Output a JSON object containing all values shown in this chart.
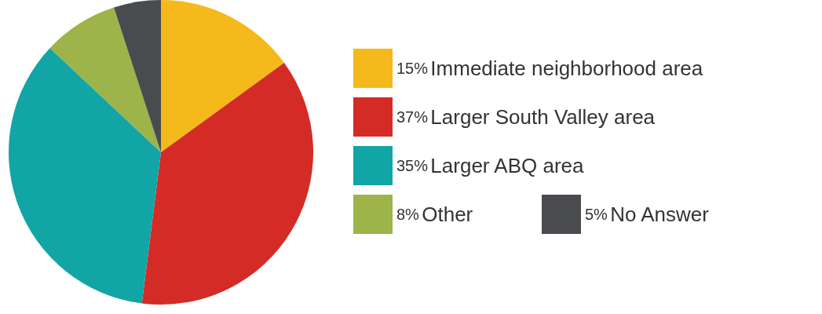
{
  "chart_data": {
    "type": "pie",
    "categories": [
      "Immediate neighborhood area",
      "Larger South Valley area",
      "Larger ABQ area",
      "Other",
      "No Answer"
    ],
    "values": [
      15,
      37,
      35,
      8,
      5
    ],
    "value_labels": [
      "15%",
      "37%",
      "35%",
      "8%",
      "5%"
    ],
    "colors": [
      "#f5b91c",
      "#d42b27",
      "#12a5a6",
      "#9cb44a",
      "#4a4b4f"
    ],
    "legend": "right"
  }
}
